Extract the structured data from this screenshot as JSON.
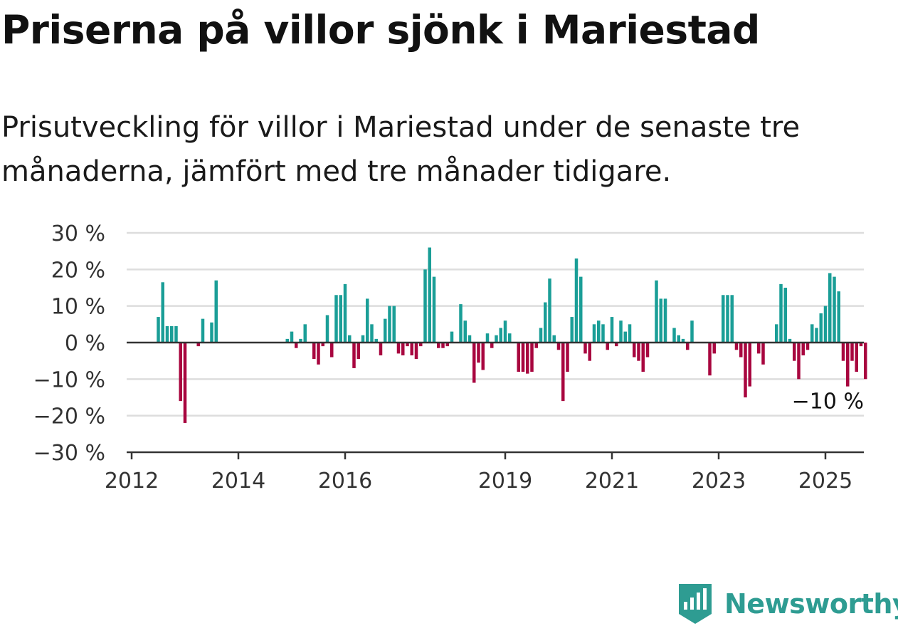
{
  "title": "Priserna på villor sjönk i Mariestad",
  "subtitle": "Prisutveckling för villor i Mariestad under de senaste tre månaderna, jämfört med tre månader tidigare.",
  "brand": {
    "name": "Newsworthy",
    "color": "#2e9c92",
    "logo_icon": "bar-chart-speech-bubble-icon"
  },
  "colors": {
    "positive": "#1a9e97",
    "negative": "#a8063f",
    "grid": "#dddddd",
    "axis": "#333333"
  },
  "chart_data": {
    "type": "bar",
    "title": "Priserna på villor sjönk i Mariestad",
    "subtitle": "Prisutveckling för villor i Mariestad under de senaste tre månaderna, jämfört med tre månader tidigare.",
    "y_unit": "%",
    "ylim": [
      -30,
      30
    ],
    "yticks": [
      30,
      20,
      10,
      0,
      -10,
      -20,
      -30
    ],
    "ytick_labels": [
      "30 %",
      "20 %",
      "10 %",
      "0 %",
      "−10 %",
      "−20 %",
      "−30 %"
    ],
    "xticks": [
      "2012",
      "2014",
      "2016",
      "2019",
      "2021",
      "2023",
      "2025"
    ],
    "grid": true,
    "last_value_label": "−10 %",
    "x_start": "2012-01",
    "frequency": "monthly",
    "values": [
      null,
      null,
      null,
      null,
      null,
      null,
      7,
      16.5,
      4.5,
      4.5,
      4.5,
      -16,
      -22,
      null,
      null,
      -1,
      6.5,
      null,
      5.5,
      17,
      null,
      null,
      null,
      null,
      null,
      null,
      null,
      null,
      null,
      null,
      null,
      null,
      null,
      null,
      null,
      1,
      3,
      -1.5,
      1,
      5,
      null,
      -4.5,
      -6,
      -1,
      7.5,
      -4,
      13,
      13,
      16,
      2,
      -7,
      -4.5,
      2,
      12,
      5,
      1,
      -3.5,
      6.5,
      10,
      10,
      -3,
      -3.5,
      -1,
      -3.5,
      -4.5,
      -1,
      20,
      26,
      18,
      -1.5,
      -1.5,
      -1,
      3,
      null,
      10.5,
      6,
      2,
      -11,
      -5.5,
      -7.5,
      2.5,
      -1.5,
      2,
      4,
      6,
      2.5,
      null,
      -8,
      -8,
      -8.5,
      -8,
      -1.5,
      4,
      11,
      17.5,
      2,
      -2,
      -16,
      -8,
      7,
      23,
      18,
      -3,
      -5,
      5,
      6,
      5,
      -2,
      7,
      -1,
      6,
      3,
      5,
      -4,
      -5,
      -8,
      -4,
      null,
      17,
      12,
      12,
      null,
      4,
      2,
      1,
      -2,
      6,
      null,
      null,
      null,
      -9,
      -3,
      null,
      13,
      13,
      13,
      -2,
      -4,
      -15,
      -12,
      null,
      -3,
      -6,
      null,
      null,
      5,
      16,
      15,
      1,
      -5,
      -10,
      -3.5,
      -2,
      5,
      4,
      8,
      10,
      19,
      18,
      14,
      -5,
      -12,
      -5,
      -8,
      -1,
      -10
    ]
  }
}
